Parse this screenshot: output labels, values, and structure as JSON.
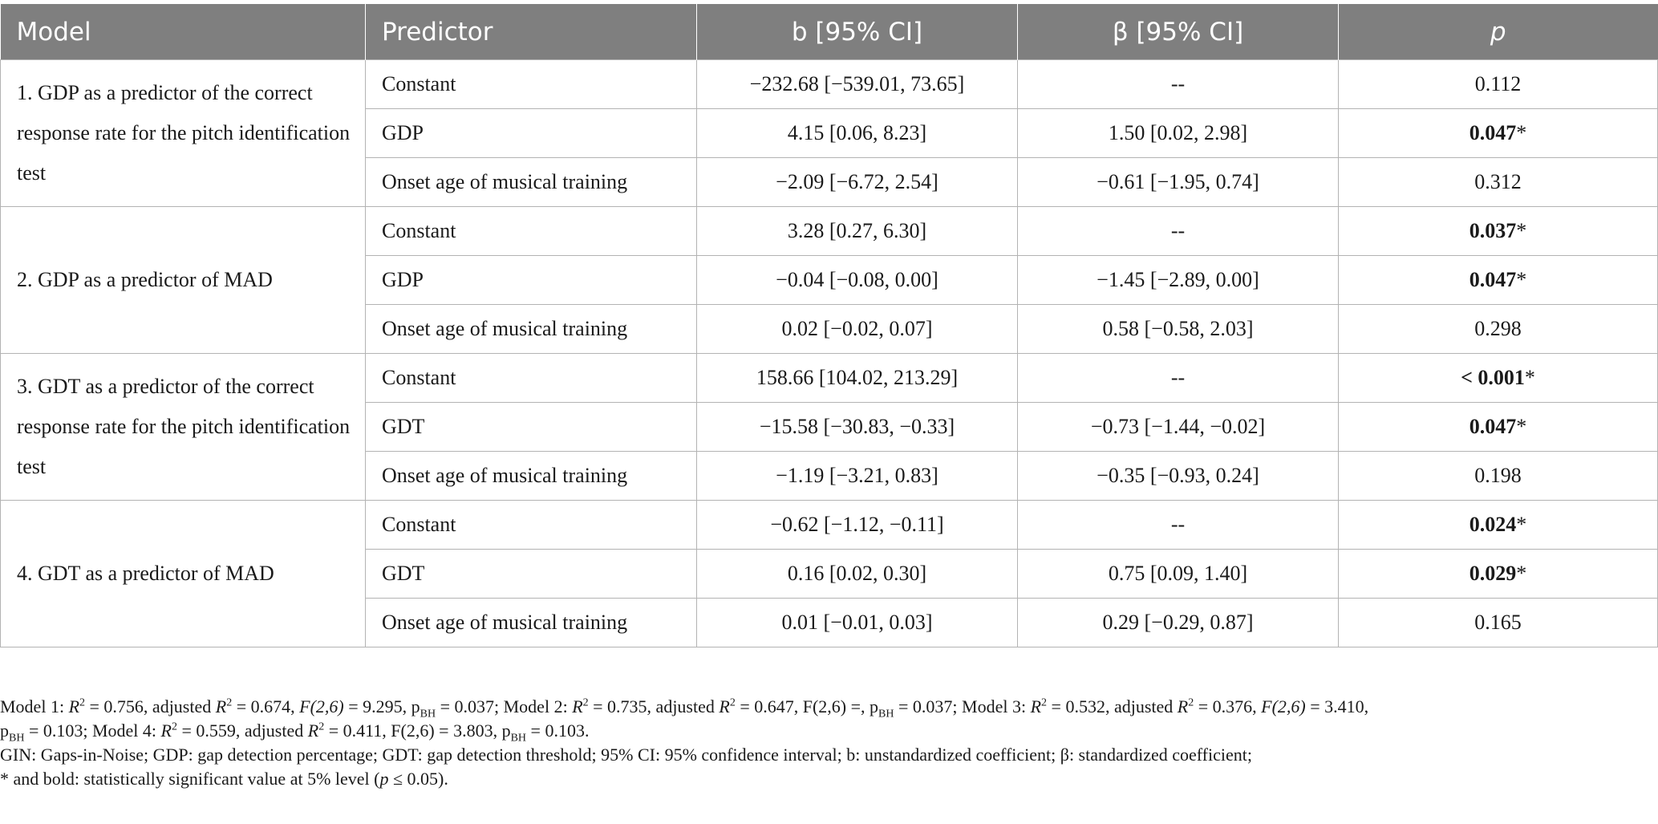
{
  "headers": {
    "model": "Model",
    "predictor": "Predictor",
    "b_ci": "b [95% CI]",
    "beta_ci": "β [95% CI]",
    "p": "p"
  },
  "models": [
    {
      "label": "1. GDP as a predictor of the correct response rate for the pitch identification test",
      "rows": [
        {
          "predictor": "Constant",
          "b": "−232.68 [−539.01, 73.65]",
          "beta": "--",
          "p": "0.112",
          "sig": false,
          "p_prefix": ""
        },
        {
          "predictor": "GDP",
          "b": "4.15 [0.06, 8.23]",
          "beta": "1.50 [0.02, 2.98]",
          "p": "0.047",
          "sig": true,
          "p_prefix": ""
        },
        {
          "predictor": "Onset age of musical training",
          "b": "−2.09 [−6.72, 2.54]",
          "beta": "−0.61 [−1.95, 0.74]",
          "p": "0.312",
          "sig": false,
          "p_prefix": ""
        }
      ]
    },
    {
      "label": "2. GDP as a predictor of MAD",
      "rows": [
        {
          "predictor": "Constant",
          "b": "3.28 [0.27, 6.30]",
          "beta": "--",
          "p": "0.037",
          "sig": true,
          "p_prefix": ""
        },
        {
          "predictor": "GDP",
          "b": "−0.04 [−0.08, 0.00]",
          "beta": "−1.45 [−2.89, 0.00]",
          "p": "0.047",
          "sig": true,
          "p_prefix": ""
        },
        {
          "predictor": "Onset age of musical training",
          "b": "0.02 [−0.02, 0.07]",
          "beta": "0.58 [−0.58, 2.03]",
          "p": "0.298",
          "sig": false,
          "p_prefix": ""
        }
      ]
    },
    {
      "label": "3. GDT as a predictor of the correct response rate for the pitch identification test",
      "rows": [
        {
          "predictor": "Constant",
          "b": "158.66 [104.02, 213.29]",
          "beta": "--",
          "p": "0.001",
          "sig": true,
          "p_prefix": "< "
        },
        {
          "predictor": "GDT",
          "b": "−15.58 [−30.83, −0.33]",
          "beta": "−0.73 [−1.44, −0.02]",
          "p": "0.047",
          "sig": true,
          "p_prefix": ""
        },
        {
          "predictor": "Onset age of musical training",
          "b": "−1.19 [−3.21, 0.83]",
          "beta": "−0.35 [−0.93, 0.24]",
          "p": "0.198",
          "sig": false,
          "p_prefix": ""
        }
      ]
    },
    {
      "label": "4. GDT as a predictor of MAD",
      "rows": [
        {
          "predictor": "Constant",
          "b": "−0.62 [−1.12, −0.11]",
          "beta": "--",
          "p": "0.024",
          "sig": true,
          "p_prefix": ""
        },
        {
          "predictor": "GDT",
          "b": "0.16 [0.02, 0.30]",
          "beta": "0.75 [0.09, 1.40]",
          "p": "0.029",
          "sig": true,
          "p_prefix": ""
        },
        {
          "predictor": "Onset age of musical training",
          "b": "0.01 [−0.01, 0.03]",
          "beta": "0.29 [−0.29, 0.87]",
          "p": "0.165",
          "sig": false,
          "p_prefix": ""
        }
      ]
    }
  ],
  "sig_marker": "*",
  "notes": {
    "stats": {
      "m1_label": "Model 1: ",
      "m1_r2": " = 0.756, adjusted ",
      "m1_adj": " = 0.674, ",
      "m1_f": " = 9.295, p",
      "m1_p": " = 0.037; ",
      "m2_label": "Model 2: ",
      "m2_r2": " = 0.735, adjusted ",
      "m2_adj": " = 0.647, F(2,6) =, p",
      "m2_p": " = 0.037; ",
      "m3_label": "Model 3: ",
      "m3_r2": " = 0.532, adjusted ",
      "m3_adj": " = 0.376, ",
      "m3_f": " = 3.410,",
      "m3_p_pre": "p",
      "m3_p": " = 0.103; ",
      "m4_label": "Model 4: ",
      "m4_r2": " = 0.559, adjusted ",
      "m4_adj": " = 0.411, F(2,6) = 3.803, p",
      "m4_p": " = 0.103.",
      "r": "R",
      "two": "2",
      "f26": "F(2,6)",
      "bh": "BH"
    },
    "abbrev": "GIN: Gaps-in-Noise; GDP: gap detection percentage; GDT: gap detection threshold; 95% CI: 95% confidence interval; b: unstandardized coefficient; β: standardized coefficient;",
    "sig_note_pre": "* and bold: statistically significant value at 5% level (",
    "sig_note_p": "p",
    "sig_note_post": " ≤ 0.05)."
  }
}
